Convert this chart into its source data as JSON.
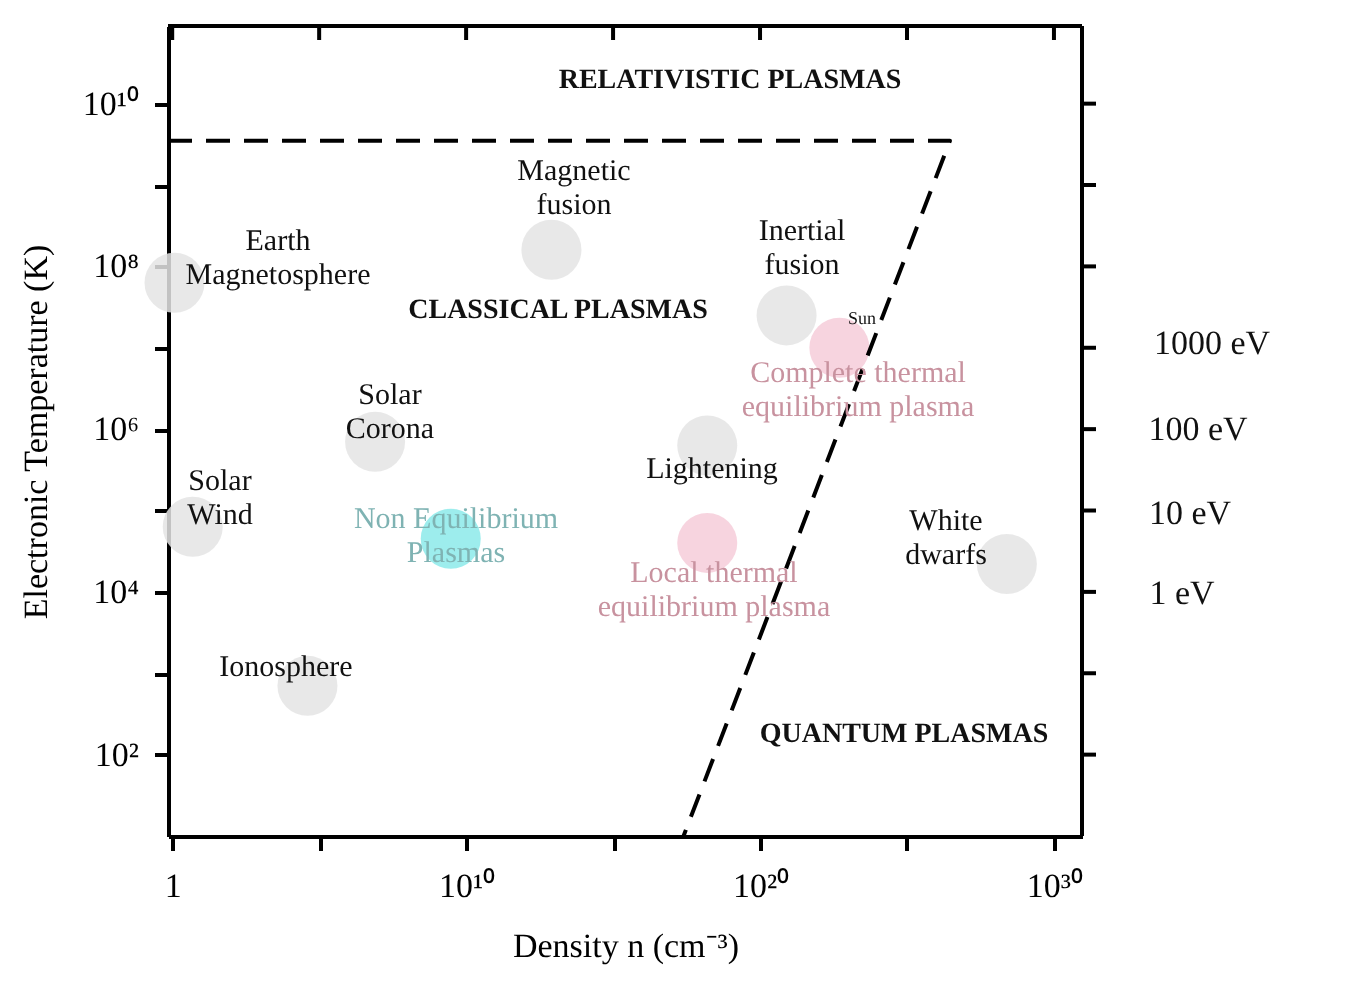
{
  "chart_data": {
    "type": "scatter",
    "xlabel": "Density n (cm⁻³)",
    "ylabel": "Electronic Temperature (K)",
    "log": "xy",
    "xlim": [
      0.72,
      9e+30
    ],
    "ylim": [
      10,
      90000000000.0
    ],
    "xticks": [
      {
        "value": 1,
        "label": "1"
      },
      {
        "value": 100000.0,
        "label": null
      },
      {
        "value": 10000000000.0,
        "label": "10¹⁰"
      },
      {
        "value": 1000000000000000.0,
        "label": null
      },
      {
        "value": 1e+20,
        "label": "10²⁰"
      },
      {
        "value": 1e+25,
        "label": null
      },
      {
        "value": 1e+30,
        "label": "10³⁰"
      }
    ],
    "yticks": [
      {
        "value": 100,
        "label": "10²"
      },
      {
        "value": 1000,
        "label": null
      },
      {
        "value": 10000.0,
        "label": "10⁴"
      },
      {
        "value": 100000.0,
        "label": null
      },
      {
        "value": 1000000.0,
        "label": "10⁶"
      },
      {
        "value": 10000000.0,
        "label": null
      },
      {
        "value": 100000000.0,
        "label": "10⁸"
      },
      {
        "value": 1000000000.0,
        "label": null
      },
      {
        "value": 10000000000.0,
        "label": "10¹⁰"
      }
    ],
    "grid": false,
    "marker": "circle",
    "series": [
      {
        "color": "#e4e4e4",
        "x": [
          1.2,
          8000000000000.0,
          8e+20,
          8000000.0,
          1.6e+18,
          5,
          2.5e+28,
          40000.0
        ],
        "values": [
          63000000.0,
          160000000.0,
          25000000.0,
          700000.0,
          630000.0,
          63000.0,
          22000.0,
          700
        ]
      },
      {
        "color": "#8ceaea",
        "x": [
          3000000000.0
        ],
        "values": [
          45000.0
        ]
      },
      {
        "color": "#f6ccd9",
        "x": [
          1.6e+18,
          5e+22
        ],
        "values": [
          40000.0,
          10000000.0
        ]
      },
      {
        "type": "line",
        "color": "#000000",
        "line_style": "dashed",
        "marker": "none",
        "x": [
          0.72,
          2.9e+26,
          2.5e+17
        ],
        "values": [
          3500000000.0,
          3500000000.0,
          10
        ]
      }
    ],
    "annotations": [
      "RELATIVISTIC PLASMAS",
      "Magnetic\nfusion",
      "Earth\nMagnetosphere",
      "Inertial\nfusion",
      "CLASSICAL PLASMAS",
      "Sun",
      "Complete thermal\nequilibrium plasma",
      "Solar\nCorona",
      "Solar\nWind",
      "Non Equilibrium\nPlasmas",
      "Lightening",
      "Local thermal\nequilibrium plasma",
      "White\ndwarfs",
      "Ionosphere",
      "QUANTUM PLASMAS",
      "1000 eV",
      "100 eV",
      "10 eV",
      "1 eV"
    ]
  }
}
